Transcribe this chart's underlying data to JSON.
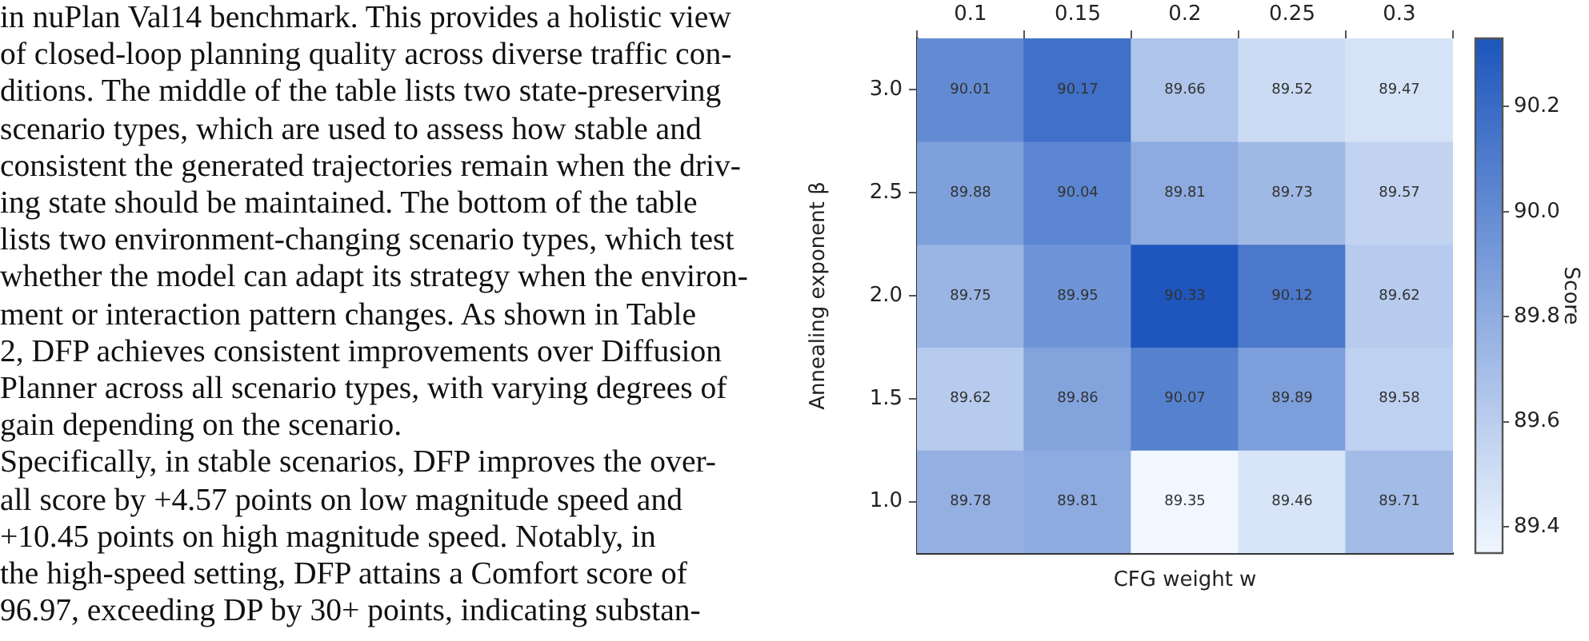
{
  "chart_data": {
    "type": "heatmap",
    "xlabel": "CFG weight w",
    "ylabel": "Annealing exponent β",
    "clabel": "Score",
    "categories": [
      "0.1",
      "0.15",
      "0.2",
      "0.25",
      "0.3"
    ],
    "y_categories": [
      "3.0",
      "2.5",
      "2.0",
      "1.5",
      "1.0"
    ],
    "cells": [
      [
        90.01,
        90.17,
        89.66,
        89.52,
        89.47
      ],
      [
        89.88,
        90.04,
        89.81,
        89.73,
        89.57
      ],
      [
        89.75,
        89.95,
        90.33,
        90.12,
        89.62
      ],
      [
        89.62,
        89.86,
        90.07,
        89.89,
        89.58
      ],
      [
        89.78,
        89.81,
        89.35,
        89.46,
        89.71
      ]
    ],
    "clim": [
      89.35,
      90.33
    ],
    "cticks": [
      89.4,
      89.6,
      89.8,
      {
        "value": 90,
        "label": "90.0"
      },
      90.2
    ],
    "data_labels": true,
    "annotations": [
      "in nuPlan Val14 benchmark. This provides a holistic view",
      "of closed-loop planning quality across diverse traffic con-",
      "ditions. The middle of the table lists two state-preserving",
      "scenario types, which are used to assess how stable and",
      "consistent the generated trajectories remain when the driv-",
      "ing state should be maintained. The bottom of the table",
      "lists two environment-changing scenario types, which test",
      "whether the model can adapt its strategy when the environ-",
      "ment or interaction pattern changes. As shown in Table",
      "2, DFP achieves consistent improvements over Diffusion",
      "Planner across all scenario types, with varying degrees of",
      "gain depending on the scenario.",
      "Specifically, in stable scenarios, DFP improves the over-",
      "all score by +4.57 points on low magnitude speed and",
      "+10.45 points on high magnitude speed. Notably, in",
      "the high-speed setting, DFP attains a Comfort score of",
      "96.97, exceeding DP by 30+ points, indicating substan-"
    ]
  }
}
